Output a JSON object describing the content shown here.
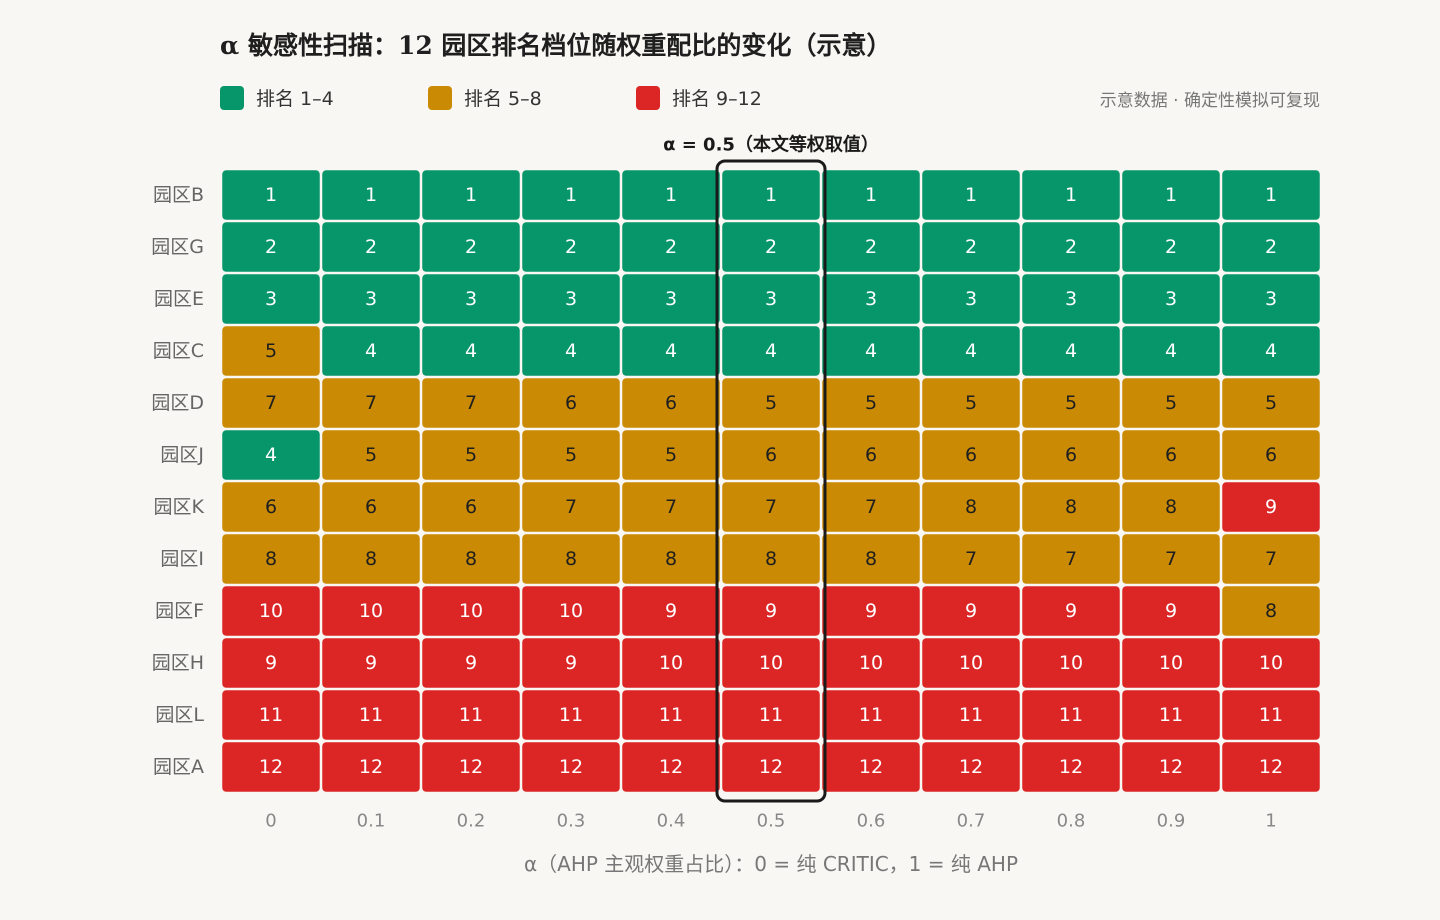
{
  "title": "α 敏感性扫描：12 园区排名档位随权重配比的变化（示意）",
  "legend": [
    {
      "label": "排名 1–4",
      "color": "#079669"
    },
    {
      "label": "排名 5–8",
      "color": "#ca8a04"
    },
    {
      "label": "排名 9–12",
      "color": "#dc2626"
    }
  ],
  "note": "示意数据 · 确定性模拟可复现",
  "highlight_label": "α = 0.5（本文等权取值）",
  "chart_data": {
    "type": "heatmap",
    "title": "α 敏感性扫描：12 园区排名档位随权重配比的变化（示意）",
    "xlabel": "α（AHP 主观权重占比）：0 = 纯 CRITIC，1 = 纯 AHP",
    "x": [
      "0",
      "0.1",
      "0.2",
      "0.3",
      "0.4",
      "0.5",
      "0.6",
      "0.7",
      "0.8",
      "0.9",
      "1"
    ],
    "highlight_x": "0.5",
    "rows": [
      "园区B",
      "园区G",
      "园区E",
      "园区C",
      "园区D",
      "园区J",
      "园区K",
      "园区I",
      "园区F",
      "园区H",
      "园区L",
      "园区A"
    ],
    "values": [
      [
        1,
        1,
        1,
        1,
        1,
        1,
        1,
        1,
        1,
        1,
        1
      ],
      [
        2,
        2,
        2,
        2,
        2,
        2,
        2,
        2,
        2,
        2,
        2
      ],
      [
        3,
        3,
        3,
        3,
        3,
        3,
        3,
        3,
        3,
        3,
        3
      ],
      [
        5,
        4,
        4,
        4,
        4,
        4,
        4,
        4,
        4,
        4,
        4
      ],
      [
        7,
        7,
        7,
        6,
        6,
        5,
        5,
        5,
        5,
        5,
        5
      ],
      [
        4,
        5,
        5,
        5,
        5,
        6,
        6,
        6,
        6,
        6,
        6
      ],
      [
        6,
        6,
        6,
        7,
        7,
        7,
        7,
        8,
        8,
        8,
        9
      ],
      [
        8,
        8,
        8,
        8,
        8,
        8,
        8,
        7,
        7,
        7,
        7
      ],
      [
        10,
        10,
        10,
        10,
        9,
        9,
        9,
        9,
        9,
        9,
        8
      ],
      [
        9,
        9,
        9,
        9,
        10,
        10,
        10,
        10,
        10,
        10,
        10
      ],
      [
        11,
        11,
        11,
        11,
        11,
        11,
        11,
        11,
        11,
        11,
        11
      ],
      [
        12,
        12,
        12,
        12,
        12,
        12,
        12,
        12,
        12,
        12,
        12
      ]
    ],
    "bands": [
      {
        "range": [
          1,
          4
        ],
        "label": "排名 1–4",
        "color": "#079669"
      },
      {
        "range": [
          5,
          8
        ],
        "label": "排名 5–8",
        "color": "#ca8a04"
      },
      {
        "range": [
          9,
          12
        ],
        "label": "排名 9–12",
        "color": "#dc2626"
      }
    ]
  }
}
